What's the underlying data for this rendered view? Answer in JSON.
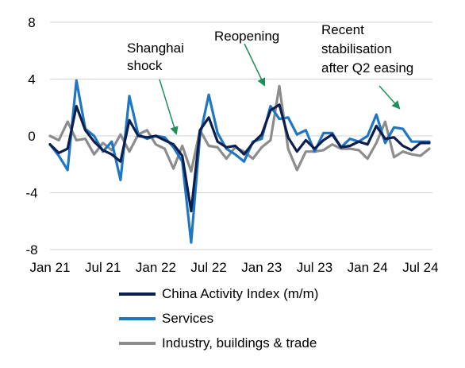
{
  "chart_data": {
    "type": "line",
    "title": "",
    "xlabel": "",
    "ylabel": "",
    "ylim": [
      -8,
      8
    ],
    "yticks": [
      "8",
      "4",
      "0",
      "-4",
      "-8"
    ],
    "grid": "horizontal",
    "legend_position": "bottom",
    "x": [
      "Jan 21",
      "Feb 21",
      "Mar 21",
      "Apr 21",
      "May 21",
      "Jun 21",
      "Jul 21",
      "Aug 21",
      "Sep 21",
      "Oct 21",
      "Nov 21",
      "Dec 21",
      "Jan 22",
      "Feb 22",
      "Mar 22",
      "Apr 22",
      "May 22",
      "Jun 22",
      "Jul 22",
      "Aug 22",
      "Sep 22",
      "Oct 22",
      "Nov 22",
      "Dec 22",
      "Jan 23",
      "Feb 23",
      "Mar 23",
      "Apr 23",
      "May 23",
      "Jun 23",
      "Jul 23",
      "Aug 23",
      "Sep 23",
      "Oct 23",
      "Nov 23",
      "Dec 23",
      "Jan 24",
      "Feb 24",
      "Mar 24",
      "Apr 24",
      "May 24",
      "Jun 24",
      "Jul 24",
      "Aug 24"
    ],
    "xticks": [
      "Jan 21",
      "Jul 21",
      "Jan 22",
      "Jul 22",
      "Jan 23",
      "Jul 23",
      "Jan 24",
      "Jul 24"
    ],
    "series": [
      {
        "name": "China Activity Index (m/m)",
        "color": "#0b1f4f",
        "values": [
          -0.6,
          -1.2,
          -0.9,
          2.1,
          0.4,
          -0.4,
          -1.0,
          -1.3,
          -1.8,
          1.1,
          0.0,
          -0.1,
          0.0,
          -0.3,
          -0.6,
          -1.4,
          -5.3,
          0.4,
          1.3,
          -0.4,
          -0.8,
          -0.7,
          -1.3,
          -0.5,
          0.1,
          1.8,
          2.2,
          -0.1,
          -1.1,
          -0.3,
          -0.9,
          -0.3,
          0.1,
          -0.8,
          -0.7,
          -0.4,
          -0.6,
          0.7,
          -0.2,
          -0.1,
          -0.7,
          -1.0,
          -0.5,
          -0.5
        ]
      },
      {
        "name": "Services",
        "color": "#1f77c4",
        "values": [
          -0.6,
          -1.4,
          -2.4,
          3.9,
          0.5,
          0.0,
          -1.1,
          -0.4,
          -3.1,
          2.8,
          0.1,
          -0.2,
          0.0,
          -0.1,
          -0.8,
          -1.8,
          -7.5,
          0.0,
          2.9,
          0.2,
          -0.9,
          -1.3,
          -1.8,
          -0.4,
          -0.2,
          2.1,
          1.2,
          1.3,
          0.1,
          0.4,
          -1.1,
          0.2,
          0.2,
          -0.8,
          -0.2,
          -0.4,
          0.0,
          1.5,
          -0.5,
          0.6,
          0.5,
          -0.4,
          -0.4,
          -0.4
        ]
      },
      {
        "name": "Industry, buildings & trade",
        "color": "#8c8c8c",
        "values": [
          0.0,
          -0.3,
          1.0,
          -0.3,
          -0.2,
          -1.3,
          -0.5,
          -1.0,
          0.1,
          -1.1,
          0.1,
          0.4,
          -0.6,
          -0.9,
          -2.3,
          -0.7,
          -2.5,
          0.4,
          -0.7,
          -0.8,
          -1.6,
          -0.8,
          -1.1,
          -1.6,
          -0.8,
          -0.3,
          3.5,
          -0.9,
          -2.4,
          -1.1,
          -1.1,
          -1.0,
          -0.6,
          -0.9,
          -0.9,
          -1.0,
          -1.6,
          -0.5,
          1.0,
          -1.5,
          -1.1,
          -1.3,
          -1.4,
          -0.9
        ]
      }
    ],
    "annotations": [
      {
        "lines": [
          "Shanghai",
          "shock"
        ]
      },
      {
        "lines": [
          "Reopening"
        ]
      },
      {
        "lines": [
          "Recent",
          "stabilisation",
          "after Q2 easing"
        ]
      }
    ]
  }
}
